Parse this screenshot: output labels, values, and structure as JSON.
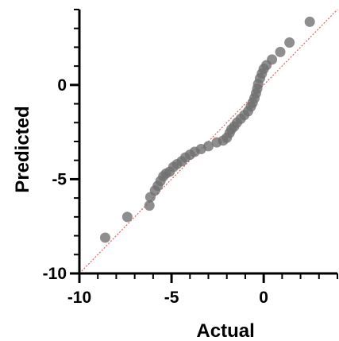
{
  "chart_data": {
    "type": "scatter",
    "title": "",
    "xlabel": "Actual",
    "ylabel": "Predicted",
    "xlim": [
      -10,
      4
    ],
    "ylim": [
      -10,
      4
    ],
    "x_ticks": [
      -10,
      -5,
      0
    ],
    "y_ticks": [
      -10,
      -5,
      0
    ],
    "x_tick_labels": [
      "-10",
      "-5",
      "0"
    ],
    "y_tick_labels": [
      "-10",
      "-5",
      "0"
    ],
    "grid": false,
    "reference_line": {
      "type": "identity",
      "from": [
        -10,
        -10
      ],
      "to": [
        4,
        4
      ],
      "color": "#e06060",
      "style": "dotted"
    },
    "marker_color": "#6e6e6e",
    "series": [
      {
        "points": [
          [
            -8.6,
            -8.1
          ],
          [
            -7.4,
            -7.0
          ],
          [
            -6.2,
            -6.4
          ],
          [
            -6.15,
            -5.95
          ],
          [
            -5.9,
            -5.6
          ],
          [
            -5.75,
            -5.35
          ],
          [
            -5.6,
            -5.1
          ],
          [
            -5.45,
            -4.85
          ],
          [
            -5.3,
            -4.7
          ],
          [
            -5.1,
            -4.6
          ],
          [
            -4.9,
            -4.35
          ],
          [
            -4.7,
            -4.2
          ],
          [
            -4.45,
            -4.05
          ],
          [
            -4.25,
            -3.85
          ],
          [
            -4.0,
            -3.7
          ],
          [
            -3.75,
            -3.55
          ],
          [
            -3.4,
            -3.4
          ],
          [
            -3.0,
            -3.25
          ],
          [
            -2.55,
            -3.05
          ],
          [
            -2.2,
            -2.95
          ],
          [
            -2.0,
            -2.8
          ],
          [
            -1.85,
            -2.55
          ],
          [
            -1.75,
            -2.35
          ],
          [
            -1.6,
            -2.2
          ],
          [
            -1.45,
            -2.0
          ],
          [
            -1.25,
            -1.8
          ],
          [
            -1.05,
            -1.6
          ],
          [
            -0.85,
            -1.4
          ],
          [
            -0.7,
            -1.15
          ],
          [
            -0.6,
            -0.95
          ],
          [
            -0.5,
            -0.7
          ],
          [
            -0.42,
            -0.45
          ],
          [
            -0.35,
            -0.2
          ],
          [
            -0.3,
            0.05
          ],
          [
            -0.2,
            0.35
          ],
          [
            -0.1,
            0.6
          ],
          [
            0.0,
            0.85
          ],
          [
            0.15,
            1.05
          ],
          [
            0.45,
            1.35
          ],
          [
            0.9,
            1.75
          ],
          [
            1.4,
            2.25
          ],
          [
            2.5,
            3.35
          ]
        ]
      }
    ]
  }
}
